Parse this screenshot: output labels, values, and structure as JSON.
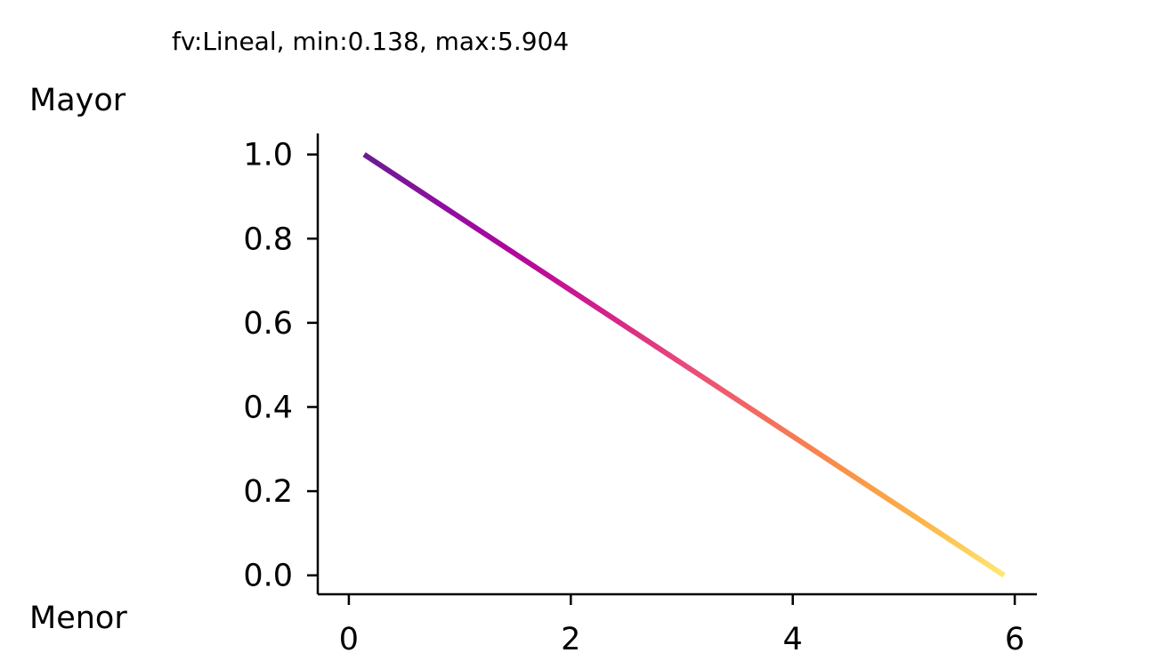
{
  "chart_data": {
    "type": "line",
    "title": "fv:Lineal, min:0.138, max:5.904",
    "y_top_label": "Mayor",
    "y_bottom_label": "Menor",
    "xlim": [
      -0.28,
      6.2
    ],
    "ylim": [
      -0.045,
      1.05
    ],
    "x_ticks": [
      0,
      2,
      4,
      6
    ],
    "x_tick_labels": [
      "0",
      "2",
      "4",
      "6"
    ],
    "y_ticks": [
      0.0,
      0.2,
      0.4,
      0.6,
      0.8,
      1.0
    ],
    "y_tick_labels": [
      "0.0",
      "0.2",
      "0.4",
      "0.6",
      "0.8",
      "1.0"
    ],
    "grid": false,
    "colormap": "plasma",
    "series": [
      {
        "x": [
          0.138,
          5.904
        ],
        "y": [
          1.0,
          0.0
        ]
      }
    ],
    "gradient_colors": [
      "#6a1c8f",
      "#8f0fa0",
      "#b5079a",
      "#d3228a",
      "#e8497a",
      "#f46d5e",
      "#f99148",
      "#fbb547",
      "#fee872"
    ]
  }
}
